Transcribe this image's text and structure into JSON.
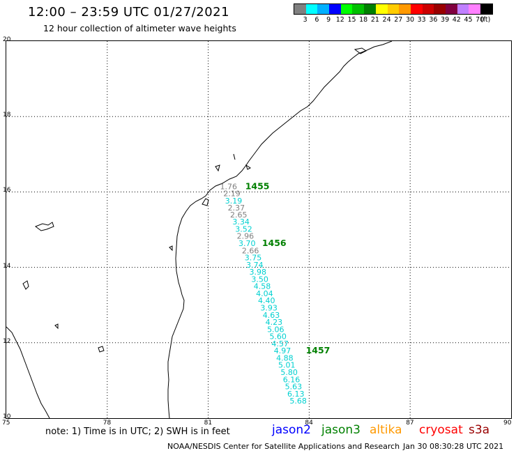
{
  "header": {
    "title": "12:00 – 23:59 UTC 01/27/2021",
    "subtitle": "12 hour collection of altimeter wave heights"
  },
  "legend": {
    "colors": [
      "#808080",
      "#00ffff",
      "#00b0ff",
      "#0000ff",
      "#00ff00",
      "#00c000",
      "#008000",
      "#ffff00",
      "#ffcc00",
      "#ff9900",
      "#ff0000",
      "#cc0000",
      "#990000",
      "#800040",
      "#c080ff",
      "#ff80ff",
      "#000000"
    ],
    "labels": [
      "3",
      "6",
      "9",
      "12",
      "15",
      "18",
      "21",
      "24",
      "27",
      "30",
      "33",
      "36",
      "39",
      "42",
      "45",
      "70",
      "(ft)"
    ]
  },
  "map": {
    "lon_ticks": [
      "75",
      "78",
      "81",
      "84",
      "87",
      "90"
    ],
    "lat_ticks": [
      "20",
      "18",
      "16",
      "14",
      "12",
      "10"
    ]
  },
  "observations": [
    {
      "lon": 81.35,
      "lat": 16.15,
      "value": "1.76",
      "color": "#808080"
    },
    {
      "lon": 81.45,
      "lat": 15.96,
      "value": "2.19",
      "color": "#808080"
    },
    {
      "lon": 81.5,
      "lat": 15.77,
      "value": "3.19",
      "color": "#00d0d0"
    },
    {
      "lon": 81.58,
      "lat": 15.58,
      "value": "2.37",
      "color": "#808080"
    },
    {
      "lon": 81.65,
      "lat": 15.4,
      "value": "2.65",
      "color": "#808080"
    },
    {
      "lon": 81.72,
      "lat": 15.21,
      "value": "3.34",
      "color": "#00d0d0"
    },
    {
      "lon": 81.8,
      "lat": 15.02,
      "value": "3.52",
      "color": "#00d0d0"
    },
    {
      "lon": 81.85,
      "lat": 14.83,
      "value": "2.96",
      "color": "#808080"
    },
    {
      "lon": 81.9,
      "lat": 14.64,
      "value": "3.70",
      "color": "#00d0d0"
    },
    {
      "lon": 82.0,
      "lat": 14.45,
      "value": "2.66",
      "color": "#808080"
    },
    {
      "lon": 82.08,
      "lat": 14.26,
      "value": "3.75",
      "color": "#00d0d0"
    },
    {
      "lon": 82.13,
      "lat": 14.07,
      "value": "3.74",
      "color": "#00d0d0"
    },
    {
      "lon": 82.22,
      "lat": 13.88,
      "value": "3.98",
      "color": "#00d0d0"
    },
    {
      "lon": 82.28,
      "lat": 13.69,
      "value": "3.50",
      "color": "#00d0d0"
    },
    {
      "lon": 82.35,
      "lat": 13.5,
      "value": "4.58",
      "color": "#00d0d0"
    },
    {
      "lon": 82.42,
      "lat": 13.31,
      "value": "4.04",
      "color": "#00d0d0"
    },
    {
      "lon": 82.48,
      "lat": 13.12,
      "value": "4.40",
      "color": "#00d0d0"
    },
    {
      "lon": 82.55,
      "lat": 12.93,
      "value": "3.93",
      "color": "#00d0d0"
    },
    {
      "lon": 82.62,
      "lat": 12.74,
      "value": "4.63",
      "color": "#00d0d0"
    },
    {
      "lon": 82.7,
      "lat": 12.55,
      "value": "4.23",
      "color": "#00d0d0"
    },
    {
      "lon": 82.75,
      "lat": 12.36,
      "value": "5.06",
      "color": "#00d0d0"
    },
    {
      "lon": 82.82,
      "lat": 12.17,
      "value": "5.60",
      "color": "#00d0d0"
    },
    {
      "lon": 82.88,
      "lat": 11.98,
      "value": "4.57",
      "color": "#00d0d0"
    },
    {
      "lon": 82.95,
      "lat": 11.79,
      "value": "4.97",
      "color": "#00d0d0"
    },
    {
      "lon": 83.02,
      "lat": 11.6,
      "value": "4.88",
      "color": "#00d0d0"
    },
    {
      "lon": 83.08,
      "lat": 11.41,
      "value": "5.01",
      "color": "#00d0d0"
    },
    {
      "lon": 83.15,
      "lat": 11.22,
      "value": "5.80",
      "color": "#00d0d0"
    },
    {
      "lon": 83.22,
      "lat": 11.03,
      "value": "6.16",
      "color": "#00d0d0"
    },
    {
      "lon": 83.28,
      "lat": 10.84,
      "value": "5.63",
      "color": "#00d0d0"
    },
    {
      "lon": 83.35,
      "lat": 10.65,
      "value": "6.13",
      "color": "#00d0d0"
    },
    {
      "lon": 83.42,
      "lat": 10.46,
      "value": "5.68",
      "color": "#00d0d0"
    }
  ],
  "passes": [
    {
      "lon": 82.1,
      "lat": 16.15,
      "label": "1455",
      "color": "#008000"
    },
    {
      "lon": 82.6,
      "lat": 14.64,
      "label": "1456",
      "color": "#008000"
    },
    {
      "lon": 83.9,
      "lat": 11.79,
      "label": "1457",
      "color": "#008000"
    }
  ],
  "footer": {
    "note": "note: 1) Time is in UTC; 2) SWH is in feet",
    "satellites": [
      {
        "name": "jason2",
        "color": "#0000ff"
      },
      {
        "name": "jason3",
        "color": "#008000"
      },
      {
        "name": "altika",
        "color": "#ff9900"
      },
      {
        "name": "cryosat",
        "color": "#ff0000"
      },
      {
        "name": "s3a",
        "color": "#990000"
      }
    ],
    "credit": "NOAA/NESDIS Center for Satellite Applications and Research",
    "timestamp": "Jan 30 08:30:28 UTC 2021"
  }
}
